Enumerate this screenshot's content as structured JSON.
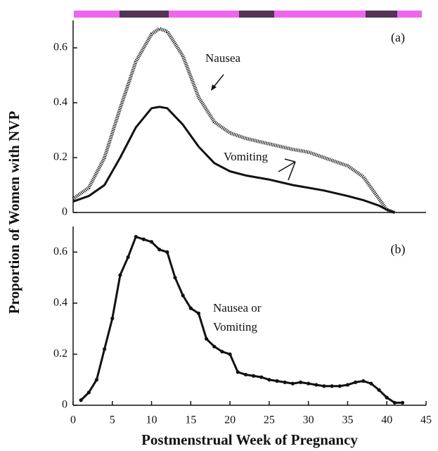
{
  "chart_data": [
    {
      "type": "line",
      "panel_label": "(a)",
      "ylabel": "Proportion of Women with NVP",
      "x": [
        0,
        2,
        4,
        6,
        8,
        10,
        11,
        12,
        14,
        16,
        18,
        20,
        22,
        25,
        28,
        30,
        32,
        35,
        37,
        39,
        40,
        41
      ],
      "series": [
        {
          "name": "Nausea",
          "color": "#222222",
          "style": "hatched",
          "values": [
            0.05,
            0.09,
            0.2,
            0.38,
            0.55,
            0.65,
            0.67,
            0.66,
            0.57,
            0.42,
            0.33,
            0.29,
            0.27,
            0.25,
            0.23,
            0.22,
            0.2,
            0.17,
            0.13,
            0.05,
            0.01,
            0
          ]
        },
        {
          "name": "Vomiting",
          "color": "#111111",
          "style": "solid",
          "values": [
            0.04,
            0.06,
            0.1,
            0.2,
            0.31,
            0.38,
            0.385,
            0.38,
            0.32,
            0.24,
            0.18,
            0.15,
            0.135,
            0.12,
            0.1,
            0.09,
            0.08,
            0.06,
            0.045,
            0.025,
            0.01,
            0
          ]
        }
      ],
      "xlim": [
        0,
        45
      ],
      "ylim": [
        0,
        0.7
      ],
      "yticks": [
        0,
        0.2,
        0.4,
        0.6
      ]
    },
    {
      "type": "line",
      "panel_label": "(b)",
      "xlabel": "Postmenstrual Week of Pregnancy",
      "x": [
        1,
        2,
        3,
        4,
        5,
        6,
        7,
        8,
        9,
        10,
        11,
        12,
        13,
        14,
        15,
        16,
        17,
        18,
        19,
        20,
        21,
        22,
        23,
        24,
        25,
        26,
        27,
        28,
        29,
        30,
        31,
        32,
        33,
        34,
        35,
        36,
        37,
        38,
        39,
        40,
        41,
        42
      ],
      "series": [
        {
          "name": "Nausea or Vomiting",
          "color": "#111111",
          "style": "solid",
          "markers": true,
          "values": [
            0.02,
            0.05,
            0.1,
            0.22,
            0.34,
            0.51,
            0.58,
            0.66,
            0.65,
            0.64,
            0.61,
            0.6,
            0.5,
            0.43,
            0.38,
            0.36,
            0.26,
            0.23,
            0.21,
            0.2,
            0.13,
            0.12,
            0.115,
            0.11,
            0.1,
            0.095,
            0.09,
            0.085,
            0.09,
            0.085,
            0.08,
            0.075,
            0.075,
            0.075,
            0.08,
            0.09,
            0.095,
            0.085,
            0.06,
            0.03,
            0.01,
            0.01
          ]
        }
      ],
      "xlim": [
        0,
        45
      ],
      "ylim": [
        0,
        0.7
      ],
      "yticks": [
        0,
        0.2,
        0.4,
        0.6
      ],
      "xticks": [
        0,
        5,
        10,
        15,
        20,
        25,
        30,
        35,
        40,
        45
      ]
    }
  ]
}
